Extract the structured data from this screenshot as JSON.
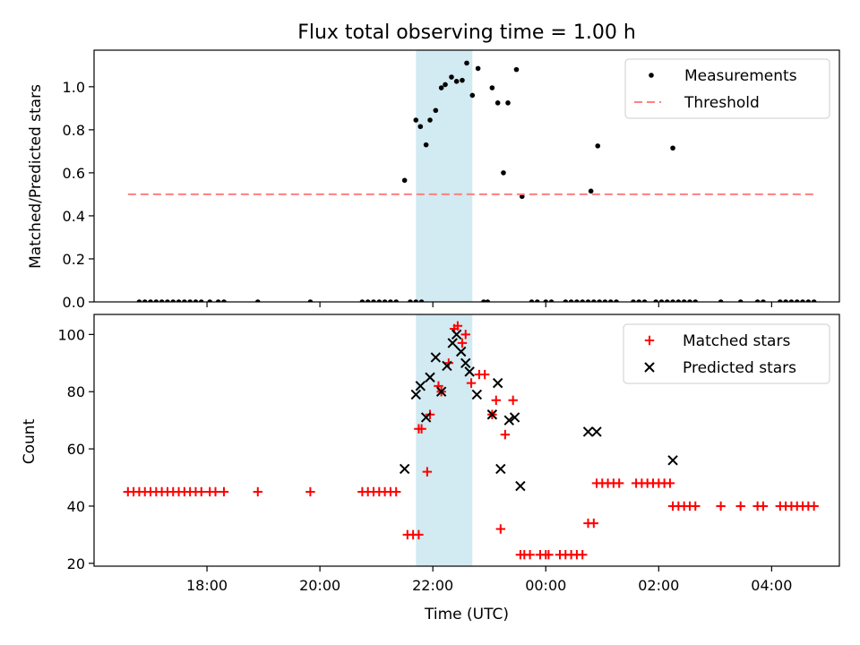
{
  "chart_data": [
    {
      "type": "scatter",
      "title": "Flux total observing time = 1.00 h",
      "ylabel": "Matched/Predicted stars",
      "xlabel": "",
      "xlim_hours": [
        16.0,
        29.2
      ],
      "ylim": [
        0,
        1.17
      ],
      "yticks": [
        0.0,
        0.2,
        0.4,
        0.6,
        0.8,
        1.0
      ],
      "ytick_labels": [
        "0.0",
        "0.2",
        "0.4",
        "0.6",
        "0.8",
        "1.0"
      ],
      "legend_position": "top-right",
      "highlight_span_hours": [
        21.7,
        22.7
      ],
      "highlight_color": "#add8e6",
      "series": [
        {
          "name": "Measurements",
          "kind": "dot",
          "color": "#000000",
          "points": [
            [
              16.8,
              0.0
            ],
            [
              16.9,
              0.0
            ],
            [
              17.0,
              0.0
            ],
            [
              17.1,
              0.0
            ],
            [
              17.2,
              0.0
            ],
            [
              17.3,
              0.0
            ],
            [
              17.4,
              0.0
            ],
            [
              17.5,
              0.0
            ],
            [
              17.6,
              0.0
            ],
            [
              17.7,
              0.0
            ],
            [
              17.8,
              0.0
            ],
            [
              17.9,
              0.0
            ],
            [
              18.05,
              0.0
            ],
            [
              18.2,
              0.0
            ],
            [
              18.3,
              0.0
            ],
            [
              18.9,
              0.0
            ],
            [
              19.83,
              0.0
            ],
            [
              20.75,
              0.0
            ],
            [
              20.85,
              0.0
            ],
            [
              20.95,
              0.0
            ],
            [
              21.05,
              0.0
            ],
            [
              21.15,
              0.0
            ],
            [
              21.25,
              0.0
            ],
            [
              21.35,
              0.0
            ],
            [
              21.5,
              0.565
            ],
            [
              21.6,
              0.0
            ],
            [
              21.7,
              0.0
            ],
            [
              21.8,
              0.0
            ],
            [
              21.7,
              0.845
            ],
            [
              21.78,
              0.815
            ],
            [
              21.88,
              0.73
            ],
            [
              21.95,
              0.845
            ],
            [
              22.05,
              0.89
            ],
            [
              22.15,
              0.995
            ],
            [
              22.22,
              1.01
            ],
            [
              22.33,
              1.045
            ],
            [
              22.42,
              1.025
            ],
            [
              22.52,
              1.03
            ],
            [
              22.6,
              1.11
            ],
            [
              22.7,
              0.96
            ],
            [
              22.8,
              1.085
            ],
            [
              22.9,
              0.0
            ],
            [
              22.97,
              0.0
            ],
            [
              23.05,
              0.995
            ],
            [
              23.15,
              0.925
            ],
            [
              23.25,
              0.6
            ],
            [
              23.33,
              0.925
            ],
            [
              23.48,
              1.08
            ],
            [
              23.58,
              0.49
            ],
            [
              23.75,
              0.0
            ],
            [
              23.85,
              0.0
            ],
            [
              24.0,
              0.0
            ],
            [
              24.1,
              0.0
            ],
            [
              24.35,
              0.0
            ],
            [
              24.45,
              0.0
            ],
            [
              24.55,
              0.0
            ],
            [
              24.65,
              0.0
            ],
            [
              24.75,
              0.0
            ],
            [
              24.85,
              0.0
            ],
            [
              24.8,
              0.515
            ],
            [
              24.92,
              0.725
            ],
            [
              24.95,
              0.0
            ],
            [
              25.05,
              0.0
            ],
            [
              25.15,
              0.0
            ],
            [
              25.25,
              0.0
            ],
            [
              25.55,
              0.0
            ],
            [
              25.65,
              0.0
            ],
            [
              25.75,
              0.0
            ],
            [
              25.95,
              0.0
            ],
            [
              26.05,
              0.0
            ],
            [
              26.15,
              0.0
            ],
            [
              26.25,
              0.0
            ],
            [
              26.35,
              0.0
            ],
            [
              26.45,
              0.0
            ],
            [
              26.55,
              0.0
            ],
            [
              26.65,
              0.0
            ],
            [
              26.25,
              0.715
            ],
            [
              27.1,
              0.0
            ],
            [
              27.45,
              0.0
            ],
            [
              27.75,
              0.0
            ],
            [
              27.85,
              0.0
            ],
            [
              28.15,
              0.0
            ],
            [
              28.25,
              0.0
            ],
            [
              28.35,
              0.0
            ],
            [
              28.45,
              0.0
            ],
            [
              28.55,
              0.0
            ],
            [
              28.65,
              0.0
            ],
            [
              28.75,
              0.0
            ]
          ]
        },
        {
          "name": "Threshold",
          "kind": "dashed-line",
          "color": "#ff7f7f",
          "points": [
            [
              16.6,
              0.5
            ],
            [
              28.75,
              0.5
            ]
          ]
        }
      ]
    },
    {
      "type": "scatter",
      "title": "",
      "ylabel": "Count",
      "xlabel": "Time (UTC)",
      "xlim_hours": [
        16.0,
        29.2
      ],
      "ylim": [
        19,
        107
      ],
      "yticks": [
        20,
        40,
        60,
        80,
        100
      ],
      "ytick_labels": [
        "20",
        "40",
        "60",
        "80",
        "100"
      ],
      "xticks_hours": [
        18,
        20,
        22,
        24,
        26,
        28
      ],
      "xtick_labels": [
        "18:00",
        "20:00",
        "22:00",
        "00:00",
        "02:00",
        "04:00"
      ],
      "legend_position": "top-right",
      "highlight_span_hours": [
        21.7,
        22.7
      ],
      "highlight_color": "#add8e6",
      "series": [
        {
          "name": "Matched stars",
          "kind": "plus",
          "color": "#ff0000",
          "points": [
            [
              16.6,
              45
            ],
            [
              16.7,
              45
            ],
            [
              16.8,
              45
            ],
            [
              16.9,
              45
            ],
            [
              17.0,
              45
            ],
            [
              17.1,
              45
            ],
            [
              17.2,
              45
            ],
            [
              17.3,
              45
            ],
            [
              17.4,
              45
            ],
            [
              17.5,
              45
            ],
            [
              17.6,
              45
            ],
            [
              17.7,
              45
            ],
            [
              17.8,
              45
            ],
            [
              17.9,
              45
            ],
            [
              18.05,
              45
            ],
            [
              18.15,
              45
            ],
            [
              18.3,
              45
            ],
            [
              18.9,
              45
            ],
            [
              19.83,
              45
            ],
            [
              20.75,
              45
            ],
            [
              20.85,
              45
            ],
            [
              20.95,
              45
            ],
            [
              21.05,
              45
            ],
            [
              21.15,
              45
            ],
            [
              21.25,
              45
            ],
            [
              21.35,
              45
            ],
            [
              21.55,
              30
            ],
            [
              21.65,
              30
            ],
            [
              21.75,
              30
            ],
            [
              21.75,
              67
            ],
            [
              21.8,
              67
            ],
            [
              21.9,
              52
            ],
            [
              21.95,
              72
            ],
            [
              22.1,
              82
            ],
            [
              22.15,
              80
            ],
            [
              22.28,
              90
            ],
            [
              22.38,
              102
            ],
            [
              22.44,
              103
            ],
            [
              22.52,
              97
            ],
            [
              22.58,
              100
            ],
            [
              22.68,
              83
            ],
            [
              22.82,
              86
            ],
            [
              22.92,
              86
            ],
            [
              23.05,
              72
            ],
            [
              23.12,
              77
            ],
            [
              23.2,
              32
            ],
            [
              23.28,
              65
            ],
            [
              23.42,
              77
            ],
            [
              23.55,
              23
            ],
            [
              23.62,
              23
            ],
            [
              23.72,
              23
            ],
            [
              23.9,
              23
            ],
            [
              24.0,
              23
            ],
            [
              24.05,
              23
            ],
            [
              24.25,
              23
            ],
            [
              24.35,
              23
            ],
            [
              24.45,
              23
            ],
            [
              24.55,
              23
            ],
            [
              24.65,
              23
            ],
            [
              24.75,
              34
            ],
            [
              24.85,
              34
            ],
            [
              24.9,
              48
            ],
            [
              25.0,
              48
            ],
            [
              25.1,
              48
            ],
            [
              25.2,
              48
            ],
            [
              25.3,
              48
            ],
            [
              25.6,
              48
            ],
            [
              25.7,
              48
            ],
            [
              25.8,
              48
            ],
            [
              25.9,
              48
            ],
            [
              26.0,
              48
            ],
            [
              26.1,
              48
            ],
            [
              26.2,
              48
            ],
            [
              26.25,
              40
            ],
            [
              26.35,
              40
            ],
            [
              26.45,
              40
            ],
            [
              26.55,
              40
            ],
            [
              26.65,
              40
            ],
            [
              27.1,
              40
            ],
            [
              27.45,
              40
            ],
            [
              27.75,
              40
            ],
            [
              27.85,
              40
            ],
            [
              28.15,
              40
            ],
            [
              28.25,
              40
            ],
            [
              28.35,
              40
            ],
            [
              28.45,
              40
            ],
            [
              28.55,
              40
            ],
            [
              28.65,
              40
            ],
            [
              28.75,
              40
            ]
          ]
        },
        {
          "name": "Predicted stars",
          "kind": "x",
          "color": "#000000",
          "points": [
            [
              21.5,
              53
            ],
            [
              21.7,
              79
            ],
            [
              21.78,
              82
            ],
            [
              21.88,
              71
            ],
            [
              21.95,
              85
            ],
            [
              22.05,
              92
            ],
            [
              22.15,
              80
            ],
            [
              22.25,
              89
            ],
            [
              22.35,
              97
            ],
            [
              22.42,
              100
            ],
            [
              22.5,
              94
            ],
            [
              22.58,
              90
            ],
            [
              22.65,
              87
            ],
            [
              22.78,
              79
            ],
            [
              23.05,
              72
            ],
            [
              23.15,
              83
            ],
            [
              23.2,
              53
            ],
            [
              23.35,
              70
            ],
            [
              23.45,
              71
            ],
            [
              23.55,
              47
            ],
            [
              24.75,
              66
            ],
            [
              24.9,
              66
            ],
            [
              26.25,
              56
            ]
          ]
        }
      ]
    }
  ]
}
